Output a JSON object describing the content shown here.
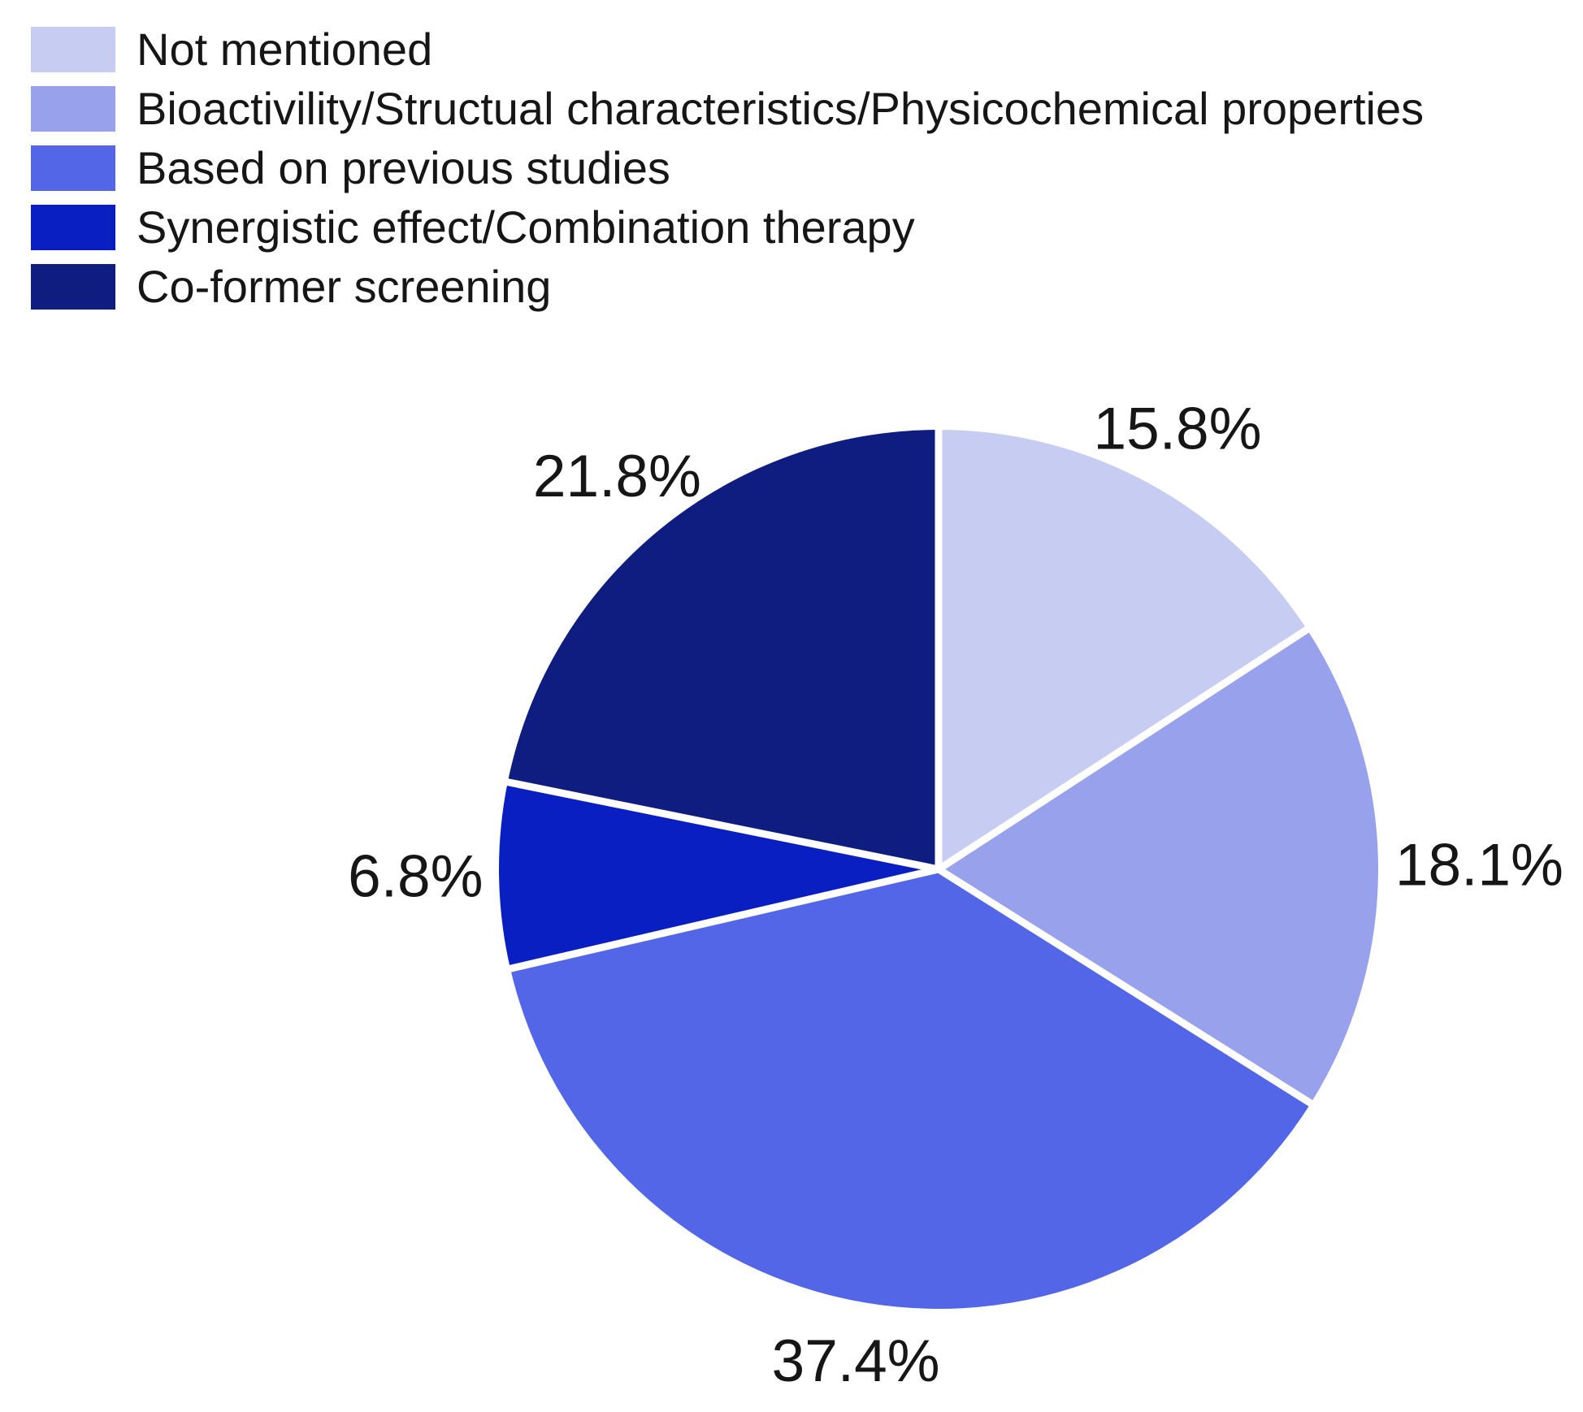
{
  "figure": {
    "background_color": "#ffffff",
    "text_color": "#161616"
  },
  "chart_data": {
    "type": "pie",
    "title": "",
    "legend_position": "top-left",
    "start_angle_deg": 0,
    "direction": "clockwise",
    "separator_color": "#ffffff",
    "slices": [
      {
        "label": "Not mentioned",
        "value": 15.8,
        "pct_label": "15.8%",
        "color": "#c7ccf2"
      },
      {
        "label": "Bioactivility/Structual characteristics/Physicochemical properties",
        "value": 18.1,
        "pct_label": "18.1%",
        "color": "#97a1ec"
      },
      {
        "label": "Based on previous studies",
        "value": 37.4,
        "pct_label": "37.4%",
        "color": "#5266e7"
      },
      {
        "label": "Synergistic effect/Combination therapy",
        "value": 6.8,
        "pct_label": "6.8%",
        "color": "#0a1fc1"
      },
      {
        "label": "Co-former screening",
        "value": 21.8,
        "pct_label": "21.8%",
        "color": "#0e1d7f"
      }
    ]
  }
}
